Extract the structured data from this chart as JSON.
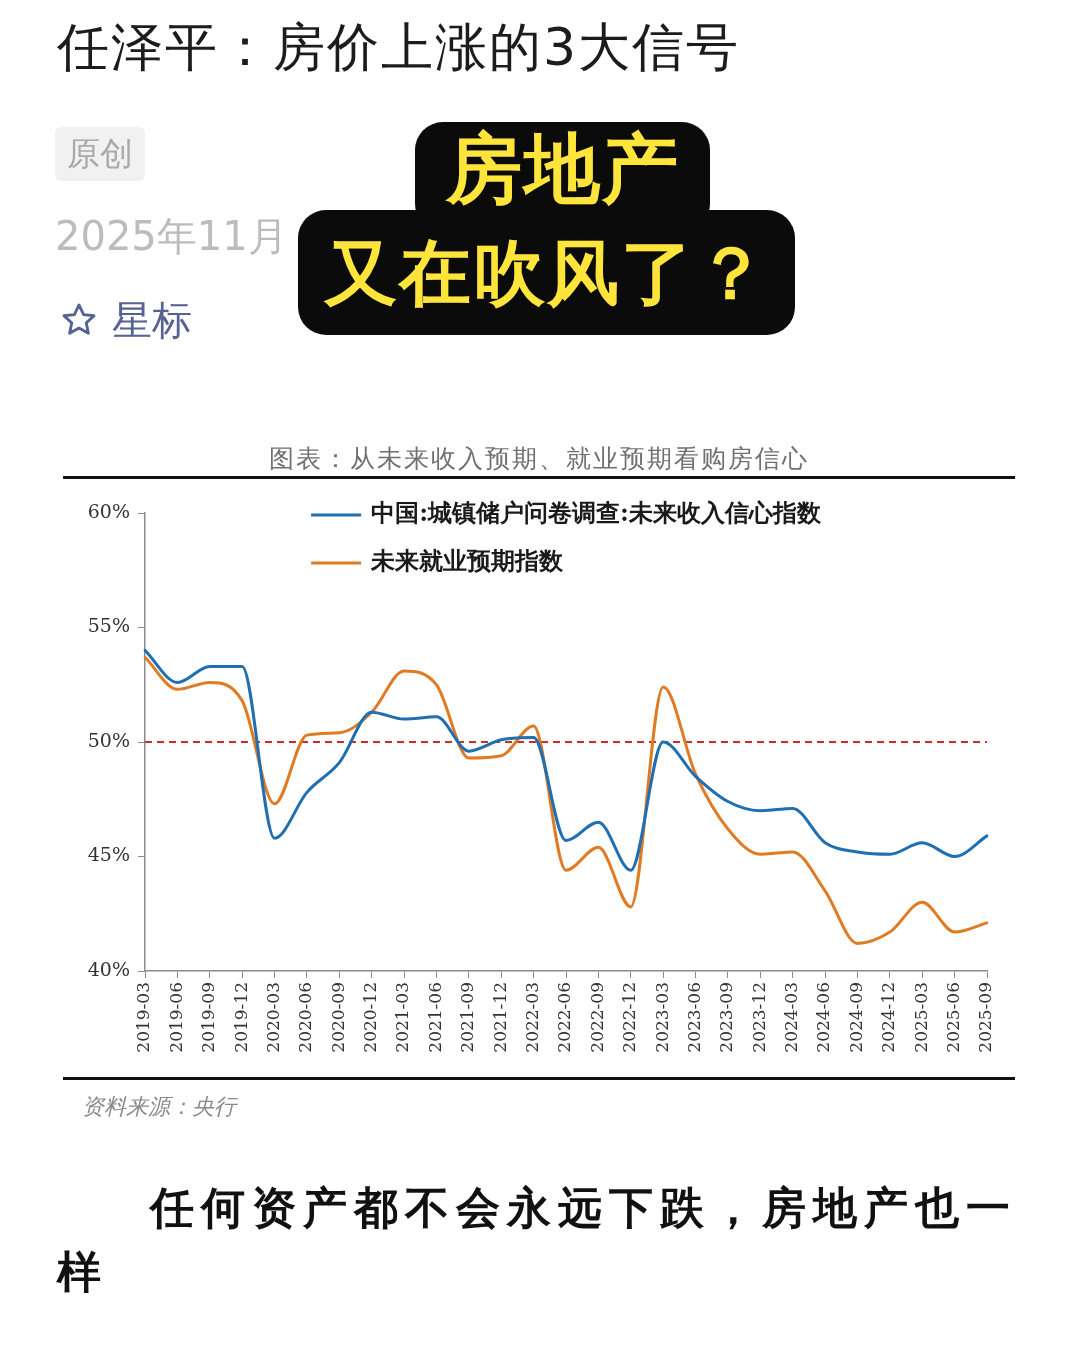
{
  "chart_data": {
    "type": "line",
    "title": "任泽平：房价上涨的3大信号",
    "subtitle": "图表：从未来收入预期、就业预期看购房信心",
    "categories": [
      "2019-03",
      "2019-06",
      "2019-09",
      "2019-12",
      "2020-03",
      "2020-06",
      "2020-09",
      "2020-12",
      "2021-03",
      "2021-06",
      "2021-09",
      "2021-12",
      "2022-03",
      "2022-06",
      "2022-09",
      "2022-12",
      "2023-03",
      "2023-06",
      "2023-09",
      "2023-12",
      "2024-03",
      "2024-06",
      "2024-09",
      "2024-12",
      "2025-03",
      "2025-06",
      "2025-09"
    ],
    "series": [
      {
        "name": "中国:城镇储户问卷调查:未来收入信心指数",
        "color": "#1f6fb2",
        "values": [
          54.0,
          52.6,
          53.3,
          53.3,
          45.8,
          47.8,
          49.1,
          51.3,
          51.0,
          51.1,
          49.6,
          50.1,
          50.2,
          45.7,
          46.5,
          44.4,
          50.0,
          48.5,
          47.4,
          47.0,
          47.1,
          45.6,
          45.2,
          45.1,
          45.6,
          45.0,
          45.9
        ]
      },
      {
        "name": "未来就业预期指数",
        "color": "#e07b24",
        "values": [
          53.7,
          52.3,
          52.6,
          51.8,
          47.3,
          50.3,
          50.4,
          51.3,
          53.1,
          52.5,
          49.3,
          49.4,
          50.7,
          44.4,
          45.4,
          42.8,
          52.4,
          48.6,
          46.2,
          45.1,
          45.2,
          43.5,
          41.2,
          41.7,
          43.0,
          41.7,
          42.1
        ]
      }
    ],
    "ylim": [
      40,
      60
    ],
    "yticks": [
      {
        "value": 40,
        "label": "40%"
      },
      {
        "value": 45,
        "label": "45%"
      },
      {
        "value": 50,
        "label": "50%"
      },
      {
        "value": 55,
        "label": "55%"
      },
      {
        "value": 60,
        "label": "60%"
      }
    ],
    "ref_lines": [
      {
        "axis": "y",
        "value": 50,
        "color": "#c9302c",
        "line_style": "dashed"
      }
    ],
    "legend": "top",
    "annotations": [
      "原创",
      "2025年11月",
      "星标",
      "房地产",
      "又在吹风了？",
      "资料来源：央行",
      "任何资产都不会永远下跌，房地产也一样"
    ]
  }
}
